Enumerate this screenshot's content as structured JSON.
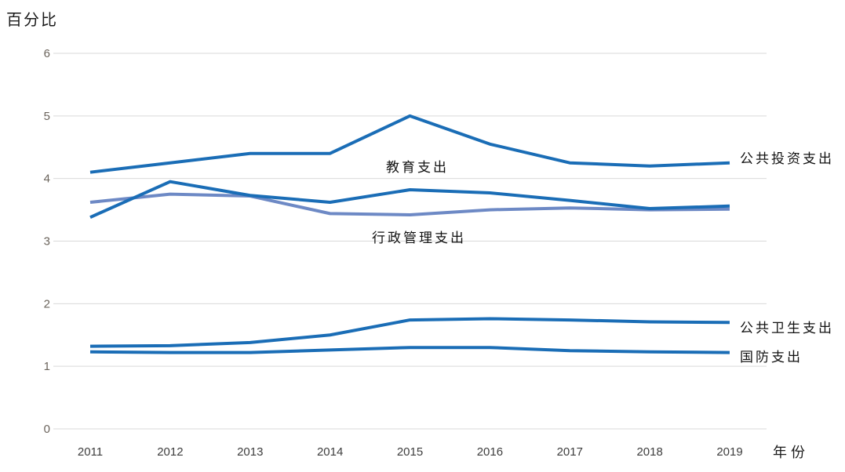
{
  "chart_data": {
    "type": "line",
    "title": "百分比",
    "xlabel": "年份",
    "x": [
      2011,
      2012,
      2013,
      2014,
      2015,
      2016,
      2017,
      2018,
      2019
    ],
    "ylim": [
      0,
      6
    ],
    "y_ticks": [
      0,
      1,
      2,
      3,
      4,
      5,
      6
    ],
    "grid": true,
    "legend_position": "inline-annotations-next-to-lines",
    "colors": {
      "grid": "#d9d9d9",
      "y_tick_text": "#6b645c",
      "x_tick_text": "#3d3d3d",
      "accent_blue": "#1a6db6",
      "muted_blue": "#6d89c5"
    },
    "series": [
      {
        "name": "公共投资支出",
        "color": "#1a6db6",
        "label_position": "right-of-line-end",
        "values": [
          4.1,
          4.25,
          4.4,
          4.4,
          5.0,
          4.55,
          4.25,
          4.2,
          4.25
        ]
      },
      {
        "name": "教育支出",
        "color": "#1a6db6",
        "label_position": "inline-below-line-near-2015",
        "values": [
          3.38,
          3.95,
          3.73,
          3.62,
          3.82,
          3.77,
          3.65,
          3.52,
          3.56
        ]
      },
      {
        "name": "行政管理支出",
        "color": "#6d89c5",
        "label_position": "inline-below-line-near-2015",
        "values": [
          3.62,
          3.75,
          3.72,
          3.44,
          3.42,
          3.5,
          3.53,
          3.5,
          3.51
        ]
      },
      {
        "name": "公共卫生支出",
        "color": "#1a6db6",
        "label_position": "right-of-line-end",
        "values": [
          1.32,
          1.33,
          1.38,
          1.5,
          1.74,
          1.76,
          1.74,
          1.71,
          1.7
        ]
      },
      {
        "name": "国防支出",
        "color": "#1a6db6",
        "label_position": "right-of-line-end",
        "values": [
          1.23,
          1.22,
          1.22,
          1.26,
          1.3,
          1.3,
          1.25,
          1.23,
          1.22
        ]
      }
    ]
  }
}
